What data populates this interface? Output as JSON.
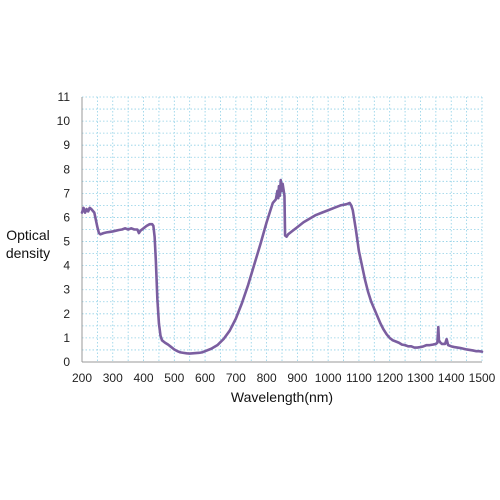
{
  "chart_data": {
    "type": "line",
    "title": "",
    "xlabel": "Wavelength(nm)",
    "ylabel_line1": "Optical",
    "ylabel_line2": "density",
    "xlim": [
      200,
      1500
    ],
    "ylim": [
      0,
      11
    ],
    "x_ticks": [
      200,
      300,
      400,
      500,
      600,
      700,
      800,
      900,
      1000,
      1100,
      1200,
      1300,
      1400,
      1500
    ],
    "y_ticks": [
      0,
      1,
      2,
      3,
      4,
      5,
      6,
      7,
      8,
      9,
      10,
      11
    ],
    "grid": true,
    "grid_style": "dotted",
    "legend": "none",
    "colors": {
      "line": "#7b5ea0",
      "grid": "#8fd0e6",
      "axis": "#999999"
    },
    "series": [
      {
        "values": [
          [
            200,
            6.2
          ],
          [
            205,
            6.4
          ],
          [
            210,
            6.2
          ],
          [
            215,
            6.35
          ],
          [
            220,
            6.25
          ],
          [
            225,
            6.4
          ],
          [
            230,
            6.35
          ],
          [
            240,
            6.2
          ],
          [
            250,
            5.6
          ],
          [
            255,
            5.35
          ],
          [
            260,
            5.3
          ],
          [
            270,
            5.35
          ],
          [
            280,
            5.38
          ],
          [
            290,
            5.4
          ],
          [
            300,
            5.42
          ],
          [
            310,
            5.45
          ],
          [
            320,
            5.48
          ],
          [
            330,
            5.5
          ],
          [
            340,
            5.55
          ],
          [
            350,
            5.5
          ],
          [
            360,
            5.55
          ],
          [
            370,
            5.5
          ],
          [
            380,
            5.5
          ],
          [
            385,
            5.35
          ],
          [
            390,
            5.45
          ],
          [
            400,
            5.55
          ],
          [
            410,
            5.65
          ],
          [
            420,
            5.72
          ],
          [
            428,
            5.72
          ],
          [
            432,
            5.65
          ],
          [
            436,
            5.2
          ],
          [
            440,
            4.2
          ],
          [
            445,
            2.6
          ],
          [
            450,
            1.6
          ],
          [
            455,
            1.1
          ],
          [
            460,
            0.9
          ],
          [
            470,
            0.8
          ],
          [
            480,
            0.72
          ],
          [
            490,
            0.62
          ],
          [
            500,
            0.52
          ],
          [
            510,
            0.45
          ],
          [
            520,
            0.4
          ],
          [
            530,
            0.38
          ],
          [
            540,
            0.36
          ],
          [
            550,
            0.35
          ],
          [
            560,
            0.36
          ],
          [
            570,
            0.37
          ],
          [
            580,
            0.38
          ],
          [
            590,
            0.4
          ],
          [
            600,
            0.45
          ],
          [
            620,
            0.55
          ],
          [
            640,
            0.7
          ],
          [
            660,
            0.95
          ],
          [
            680,
            1.3
          ],
          [
            700,
            1.8
          ],
          [
            720,
            2.45
          ],
          [
            740,
            3.2
          ],
          [
            760,
            4.05
          ],
          [
            780,
            4.9
          ],
          [
            800,
            5.8
          ],
          [
            810,
            6.2
          ],
          [
            820,
            6.6
          ],
          [
            830,
            6.75
          ],
          [
            835,
            7.1
          ],
          [
            838,
            6.8
          ],
          [
            840,
            7.3
          ],
          [
            843,
            6.9
          ],
          [
            846,
            7.55
          ],
          [
            849,
            7.1
          ],
          [
            852,
            7.4
          ],
          [
            855,
            7.15
          ],
          [
            858,
            6.9
          ],
          [
            860,
            5.25
          ],
          [
            865,
            5.2
          ],
          [
            870,
            5.3
          ],
          [
            880,
            5.4
          ],
          [
            890,
            5.5
          ],
          [
            900,
            5.6
          ],
          [
            920,
            5.8
          ],
          [
            940,
            5.95
          ],
          [
            960,
            6.1
          ],
          [
            980,
            6.2
          ],
          [
            1000,
            6.3
          ],
          [
            1020,
            6.4
          ],
          [
            1040,
            6.5
          ],
          [
            1060,
            6.55
          ],
          [
            1070,
            6.6
          ],
          [
            1075,
            6.5
          ],
          [
            1080,
            6.3
          ],
          [
            1090,
            5.5
          ],
          [
            1100,
            4.6
          ],
          [
            1110,
            4.0
          ],
          [
            1120,
            3.4
          ],
          [
            1130,
            2.9
          ],
          [
            1140,
            2.5
          ],
          [
            1150,
            2.2
          ],
          [
            1160,
            1.9
          ],
          [
            1170,
            1.6
          ],
          [
            1180,
            1.35
          ],
          [
            1190,
            1.15
          ],
          [
            1200,
            1.0
          ],
          [
            1210,
            0.9
          ],
          [
            1220,
            0.85
          ],
          [
            1230,
            0.8
          ],
          [
            1240,
            0.72
          ],
          [
            1250,
            0.7
          ],
          [
            1260,
            0.65
          ],
          [
            1270,
            0.65
          ],
          [
            1280,
            0.6
          ],
          [
            1290,
            0.6
          ],
          [
            1300,
            0.62
          ],
          [
            1310,
            0.65
          ],
          [
            1320,
            0.7
          ],
          [
            1330,
            0.7
          ],
          [
            1340,
            0.72
          ],
          [
            1350,
            0.75
          ],
          [
            1355,
            0.8
          ],
          [
            1358,
            1.45
          ],
          [
            1360,
            0.9
          ],
          [
            1365,
            0.8
          ],
          [
            1370,
            0.75
          ],
          [
            1380,
            0.75
          ],
          [
            1385,
            0.95
          ],
          [
            1390,
            0.7
          ],
          [
            1400,
            0.65
          ],
          [
            1410,
            0.62
          ],
          [
            1420,
            0.6
          ],
          [
            1430,
            0.58
          ],
          [
            1440,
            0.55
          ],
          [
            1450,
            0.52
          ],
          [
            1460,
            0.5
          ],
          [
            1470,
            0.48
          ],
          [
            1480,
            0.45
          ],
          [
            1490,
            0.45
          ],
          [
            1500,
            0.43
          ]
        ]
      }
    ]
  }
}
